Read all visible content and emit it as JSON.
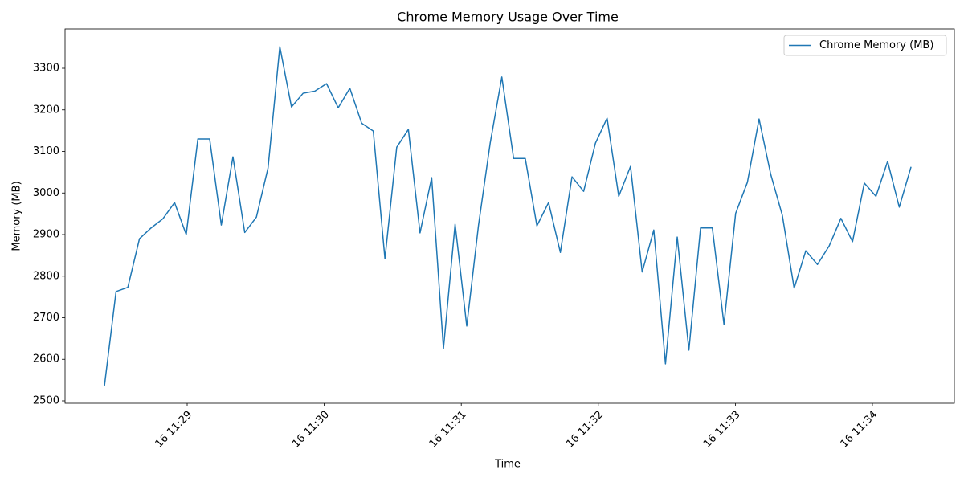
{
  "chart_data": {
    "type": "line",
    "title": "Chrome Memory Usage Over Time",
    "x_label": "Time",
    "y_label": "Memory (MB)",
    "x": [
      688.396,
      688.481,
      688.567,
      688.652,
      688.737,
      688.823,
      688.908,
      688.993,
      689.078,
      689.164,
      689.249,
      689.334,
      689.42,
      689.505,
      689.59,
      689.676,
      689.761,
      689.846,
      689.931,
      690.017,
      690.102,
      690.187,
      690.273,
      690.358,
      690.443,
      690.529,
      690.614,
      690.699,
      690.784,
      690.87,
      690.955,
      691.04,
      691.126,
      691.211,
      691.296,
      691.382,
      691.467,
      691.552,
      691.637,
      691.723,
      691.808,
      691.893,
      691.979,
      692.064,
      692.149,
      692.235,
      692.32,
      692.405,
      692.49,
      692.576,
      692.661,
      692.746,
      692.832,
      692.917,
      693.002,
      693.088,
      693.173,
      693.258,
      693.343,
      693.429,
      693.514,
      693.599,
      693.685,
      693.77,
      693.855,
      693.941,
      694.026,
      694.111,
      694.196,
      694.282
    ],
    "series": [
      {
        "name": "Chrome Memory (MB)",
        "color": "#1f77b4",
        "values": [
          2535,
          2763,
          2773,
          2890,
          2916,
          2938,
          2977,
          2900,
          3130,
          3130,
          2923,
          3087,
          2905,
          2942,
          3060,
          3352,
          3207,
          3240,
          3245,
          3263,
          3205,
          3252,
          3168,
          3149,
          2842,
          3110,
          3153,
          2904,
          3037,
          2626,
          2925,
          2680,
          2923,
          3120,
          3279,
          3083,
          3083,
          2921,
          2977,
          2857,
          3039,
          3004,
          3120,
          3180,
          2992,
          3064,
          2810,
          2911,
          2589,
          2894,
          2622,
          2916,
          2916,
          2684,
          2951,
          3026,
          3178,
          3045,
          2946,
          2771,
          2861,
          2828,
          2873,
          2939,
          2883,
          3024,
          2992,
          3076,
          2966,
          3063
        ]
      }
    ],
    "xlim": [
      688.109,
      694.598
    ],
    "xticks": [
      {
        "value": 689,
        "label": "16 11:29"
      },
      {
        "value": 690,
        "label": "16 11:30"
      },
      {
        "value": 691,
        "label": "16 11:31"
      },
      {
        "value": 692,
        "label": "16 11:32"
      },
      {
        "value": 693,
        "label": "16 11:33"
      },
      {
        "value": 694,
        "label": "16 11:34"
      }
    ],
    "ylim": [
      2494.2,
      3394.7
    ],
    "yticks": [
      2500,
      2600,
      2700,
      2800,
      2900,
      3000,
      3100,
      3200,
      3300
    ],
    "grid": false,
    "legend": "upper right"
  }
}
